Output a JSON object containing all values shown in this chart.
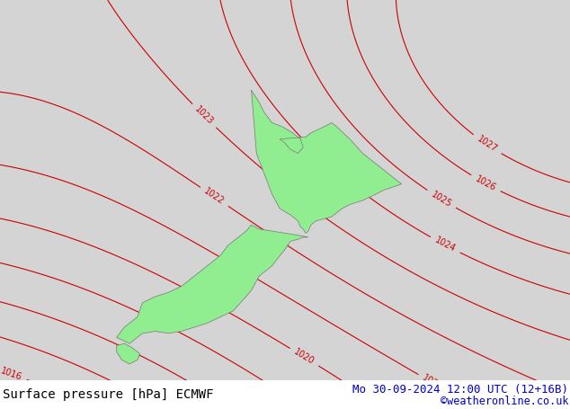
{
  "title_left": "Surface pressure [hPa] ECMWF",
  "title_right": "Mo 30-09-2024 12:00 UTC (12+16B)",
  "copyright": "©weatheronline.co.uk",
  "background_color": "#d4d4d4",
  "land_color": "#90ee90",
  "contour_color_high": "#cc0000",
  "contour_color_low": "#0000cc",
  "contour_color_mid": "#000000",
  "font_family": "monospace",
  "title_fontsize": 11,
  "label_fontsize": 7
}
